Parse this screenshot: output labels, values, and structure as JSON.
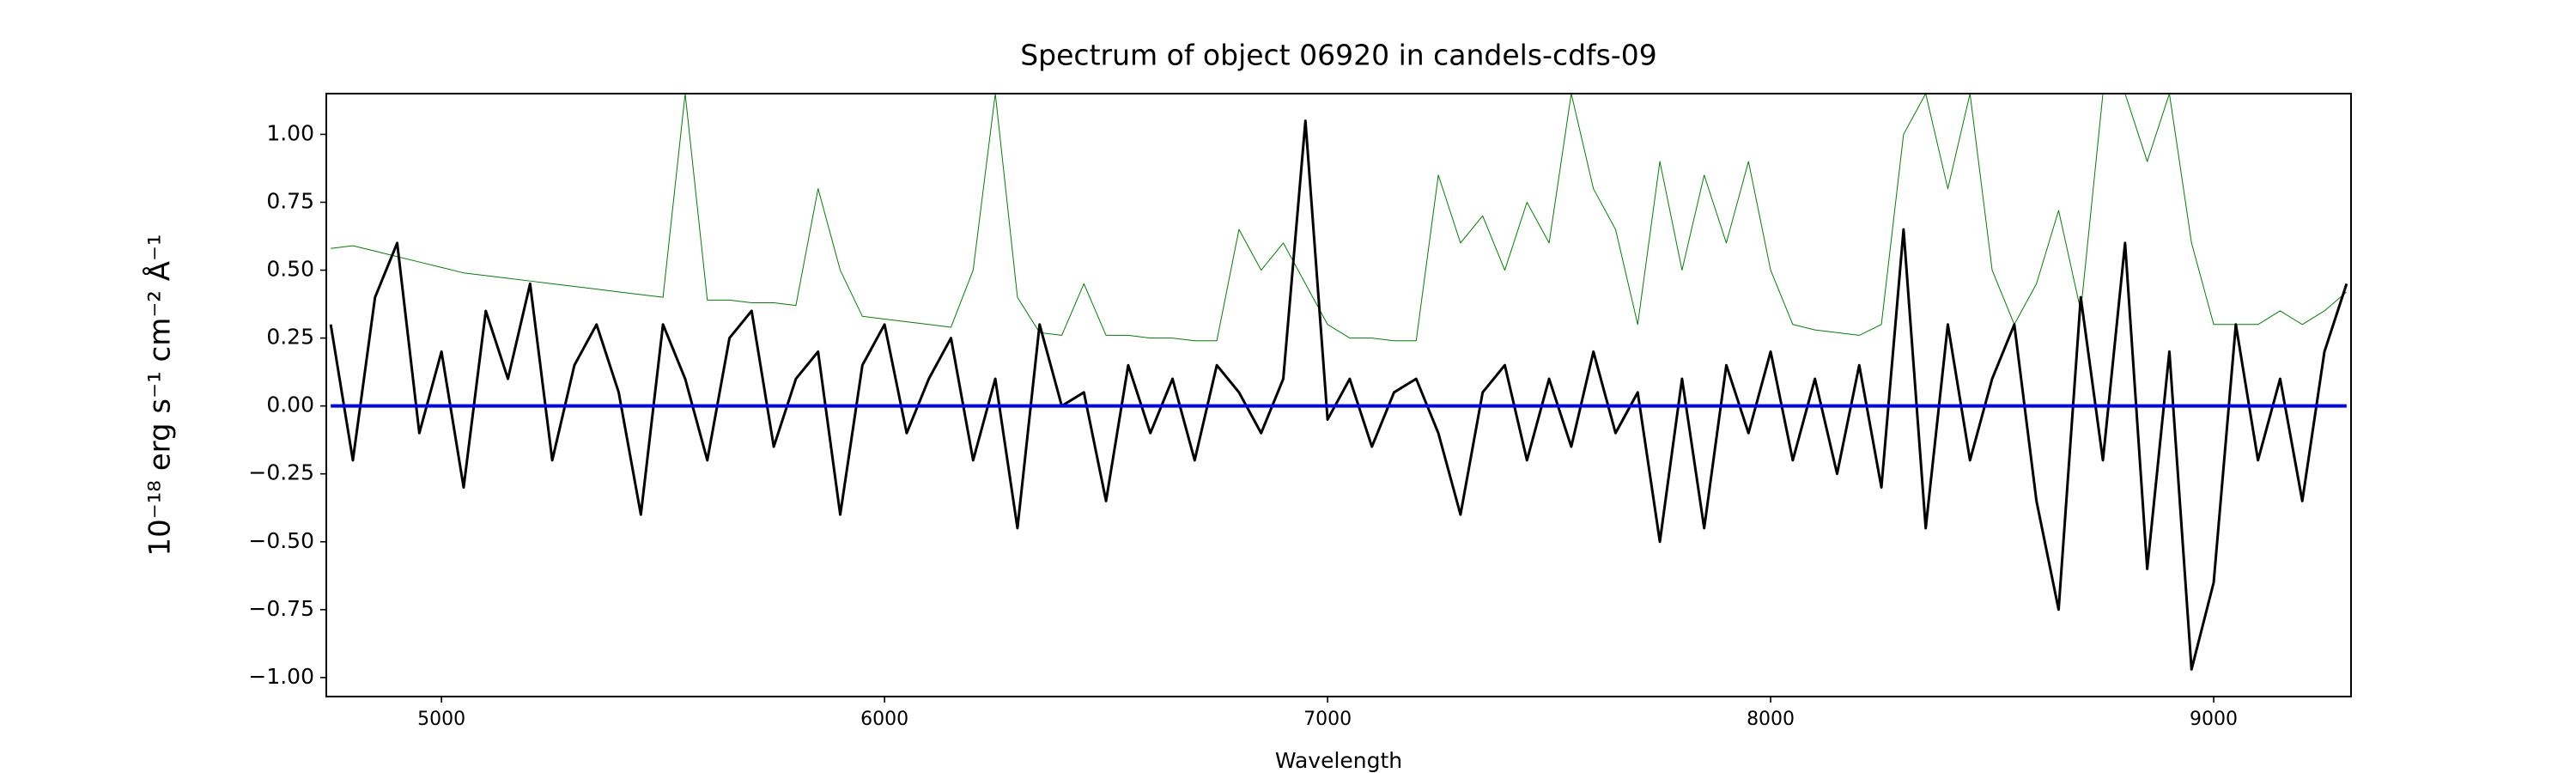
{
  "chart_data": {
    "type": "line",
    "title": "Spectrum of object 06920 in candels-cdfs-09",
    "xlabel": "Wavelength",
    "ylabel": "10⁻¹⁸ erg s⁻¹ cm⁻² Å⁻¹",
    "x": [
      4750,
      4800,
      4850,
      4900,
      4950,
      5000,
      5050,
      5100,
      5150,
      5200,
      5250,
      5300,
      5350,
      5400,
      5450,
      5500,
      5550,
      5600,
      5650,
      5700,
      5750,
      5800,
      5850,
      5900,
      5950,
      6000,
      6050,
      6100,
      6150,
      6200,
      6250,
      6300,
      6350,
      6400,
      6450,
      6500,
      6550,
      6600,
      6650,
      6700,
      6750,
      6800,
      6850,
      6900,
      6950,
      7000,
      7050,
      7100,
      7150,
      7200,
      7250,
      7300,
      7350,
      7400,
      7450,
      7500,
      7550,
      7600,
      7650,
      7700,
      7750,
      7800,
      7850,
      7900,
      7950,
      8000,
      8050,
      8100,
      8150,
      8200,
      8250,
      8300,
      8350,
      8400,
      8450,
      8500,
      8550,
      8600,
      8650,
      8700,
      8750,
      8800,
      8850,
      8900,
      8950,
      9000,
      9050,
      9100,
      9150,
      9200,
      9250,
      9300
    ],
    "series": [
      {
        "color": "#008000",
        "width": 1,
        "values": [
          0.58,
          0.59,
          0.57,
          0.55,
          0.53,
          0.51,
          0.49,
          0.48,
          0.47,
          0.46,
          0.45,
          0.44,
          0.43,
          0.42,
          0.41,
          0.4,
          1.15,
          0.39,
          0.39,
          0.38,
          0.38,
          0.37,
          0.8,
          0.5,
          0.33,
          0.32,
          0.31,
          0.3,
          0.29,
          0.5,
          1.15,
          0.4,
          0.27,
          0.26,
          0.45,
          0.26,
          0.26,
          0.25,
          0.25,
          0.24,
          0.24,
          0.65,
          0.5,
          0.6,
          0.45,
          0.3,
          0.25,
          0.25,
          0.24,
          0.24,
          0.85,
          0.6,
          0.7,
          0.5,
          0.75,
          0.6,
          1.15,
          0.8,
          0.65,
          0.3,
          0.9,
          0.5,
          0.85,
          0.6,
          0.9,
          0.5,
          0.3,
          0.28,
          0.27,
          0.26,
          0.3,
          1.0,
          1.15,
          0.8,
          1.15,
          0.5,
          0.3,
          0.45,
          0.72,
          0.35,
          1.15,
          1.15,
          0.9,
          1.15,
          0.6,
          0.3,
          0.3,
          0.3,
          0.35,
          0.3,
          0.35,
          0.42
        ]
      },
      {
        "color": "#000000",
        "width": 3,
        "values": [
          0.3,
          -0.2,
          0.4,
          0.6,
          -0.1,
          0.2,
          -0.3,
          0.35,
          0.1,
          0.45,
          -0.2,
          0.15,
          0.3,
          0.05,
          -0.4,
          0.3,
          0.1,
          -0.2,
          0.25,
          0.35,
          -0.15,
          0.1,
          0.2,
          -0.4,
          0.15,
          0.3,
          -0.1,
          0.1,
          0.25,
          -0.2,
          0.1,
          -0.45,
          0.3,
          0.0,
          0.05,
          -0.35,
          0.15,
          -0.1,
          0.1,
          -0.2,
          0.15,
          0.05,
          -0.1,
          0.1,
          1.05,
          -0.05,
          0.1,
          -0.15,
          0.05,
          0.1,
          -0.1,
          -0.4,
          0.05,
          0.15,
          -0.2,
          0.1,
          -0.15,
          0.2,
          -0.1,
          0.05,
          -0.5,
          0.1,
          -0.45,
          0.15,
          -0.1,
          0.2,
          -0.2,
          0.1,
          -0.25,
          0.15,
          -0.3,
          0.65,
          -0.45,
          0.3,
          -0.2,
          0.1,
          0.3,
          -0.35,
          -0.75,
          0.4,
          -0.2,
          0.6,
          -0.6,
          0.2,
          -0.97,
          -0.65,
          0.3,
          -0.2,
          0.1,
          -0.35,
          0.2,
          0.45
        ]
      },
      {
        "color": "#0000ff",
        "width": 4,
        "values": [
          0,
          0,
          0,
          0,
          0,
          0,
          0,
          0,
          0,
          0,
          0,
          0,
          0,
          0,
          0,
          0,
          0,
          0,
          0,
          0,
          0,
          0,
          0,
          0,
          0,
          0,
          0,
          0,
          0,
          0,
          0,
          0,
          0,
          0,
          0,
          0,
          0,
          0,
          0,
          0,
          0,
          0,
          0,
          0,
          0,
          0,
          0,
          0,
          0,
          0,
          0,
          0,
          0,
          0,
          0,
          0,
          0,
          0,
          0,
          0,
          0,
          0,
          0,
          0,
          0,
          0,
          0,
          0,
          0,
          0,
          0,
          0,
          0,
          0,
          0,
          0,
          0,
          0,
          0,
          0,
          0,
          0,
          0,
          0,
          0,
          0,
          0,
          0,
          0,
          0,
          0,
          0
        ]
      }
    ],
    "xlim": [
      4740,
      9310
    ],
    "xticks": [
      5000,
      6000,
      7000,
      8000,
      9000
    ],
    "ylim": [
      -1.07,
      1.15
    ],
    "yticks": [
      {
        "value": -1,
        "label": "−1.00"
      },
      {
        "value": -0.75,
        "label": "−0.75"
      },
      {
        "value": -0.5,
        "label": "−0.50"
      },
      {
        "value": -0.25,
        "label": "−0.25"
      },
      {
        "value": 0,
        "label": "0.00"
      },
      {
        "value": 0.25,
        "label": "0.25"
      },
      {
        "value": 0.5,
        "label": "0.50"
      },
      {
        "value": 0.75,
        "label": "0.75"
      },
      {
        "value": 1,
        "label": "1.00"
      }
    ]
  }
}
